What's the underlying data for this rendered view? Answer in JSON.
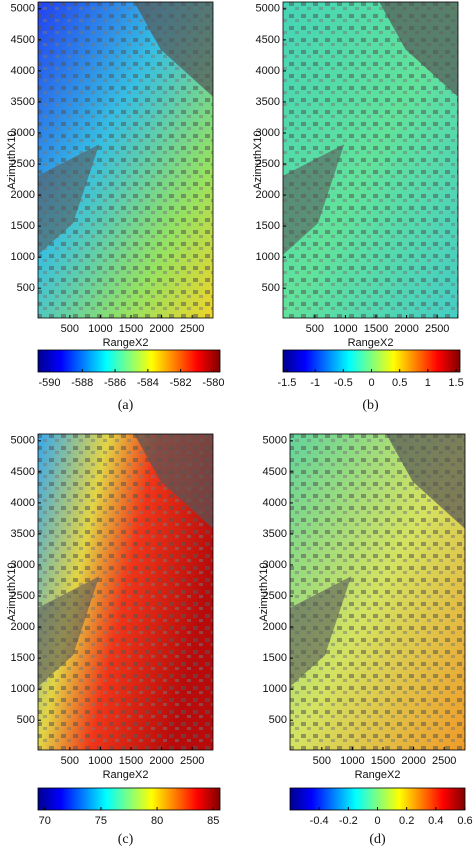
{
  "chart_data": [
    {
      "type": "image",
      "caption": "(a)",
      "xlabel": "RangeX2",
      "ylabel": "AzimuthX10",
      "xlim": [
        -20,
        2840
      ],
      "ylim": [
        5110,
        20
      ],
      "xticks": [
        500,
        1000,
        1500,
        2000,
        2500
      ],
      "yticks": [
        500,
        1000,
        1500,
        2000,
        2500,
        3000,
        3500,
        4000,
        4500,
        5000
      ],
      "colormap": "jet",
      "clim": [
        -590.7,
        -579.6
      ],
      "cticks": [
        -590,
        -588,
        -586,
        -584,
        -582,
        -580
      ]
    },
    {
      "type": "image",
      "caption": "(b)",
      "xlabel": "RangeX2",
      "ylabel": "AzimuthX10",
      "xlim": [
        -20,
        2840
      ],
      "ylim": [
        5110,
        20
      ],
      "xticks": [
        500,
        1000,
        1500,
        2000,
        2500
      ],
      "yticks": [
        500,
        1000,
        1500,
        2000,
        2500,
        3000,
        3500,
        4000,
        4500,
        5000
      ],
      "colormap": "jet",
      "clim": [
        -1.57,
        1.57
      ],
      "cticks": [
        -1.5,
        -1,
        -0.5,
        0,
        0.5,
        1,
        1.5
      ]
    },
    {
      "type": "image",
      "caption": "(c)",
      "xlabel": "RangeX2",
      "ylabel": "AzimuthX10",
      "xlim": [
        -20,
        2840
      ],
      "ylim": [
        5110,
        20
      ],
      "xticks": [
        500,
        1000,
        1500,
        2000,
        2500
      ],
      "yticks": [
        500,
        1000,
        1500,
        2000,
        2500,
        3000,
        3500,
        4000,
        4500,
        5000
      ],
      "colormap": "jet",
      "clim": [
        69.4,
        85.6
      ],
      "cticks": [
        70,
        75,
        80,
        85
      ]
    },
    {
      "type": "image",
      "caption": "(d)",
      "xlabel": "RangeX2",
      "ylabel": "AzimuthX10",
      "xlim": [
        -20,
        2840
      ],
      "ylim": [
        5110,
        20
      ],
      "xticks": [
        500,
        1000,
        1500,
        2000,
        2500
      ],
      "yticks": [
        500,
        1000,
        1500,
        2000,
        2500,
        3000,
        3500,
        4000,
        4500,
        5000
      ],
      "colormap": "jet",
      "clim": [
        -0.6,
        0.6
      ],
      "cticks": [
        -0.4,
        -0.2,
        0,
        0.2,
        0.4,
        0.6
      ]
    }
  ]
}
